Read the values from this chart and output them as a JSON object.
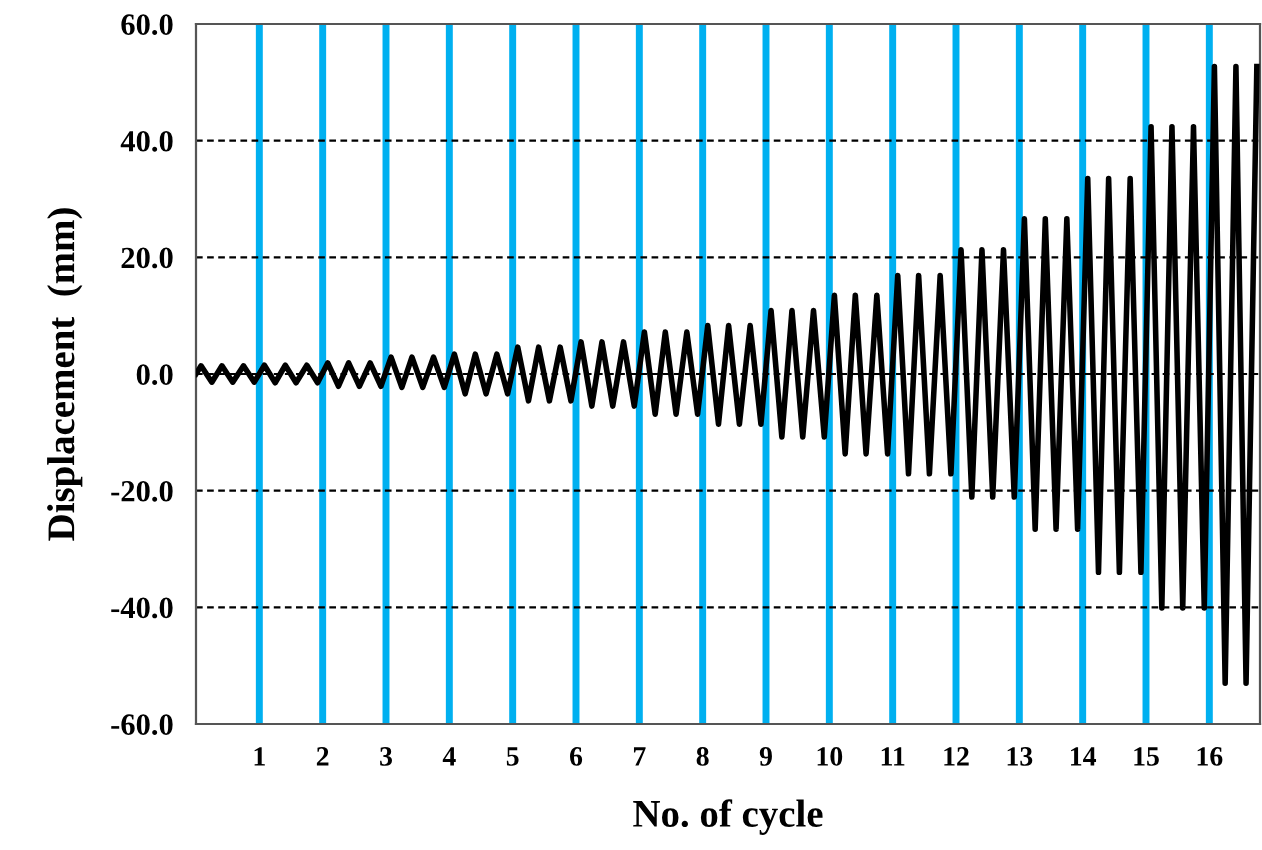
{
  "chart_data": {
    "type": "line",
    "xlabel": "No. of cycle",
    "ylabel": "Displacement  (mm)",
    "xlim": [
      0,
      16.8
    ],
    "xticks": [
      1,
      2,
      3,
      4,
      5,
      6,
      7,
      8,
      9,
      10,
      11,
      12,
      13,
      14,
      15,
      16
    ],
    "ylim": [
      -60,
      60
    ],
    "yticks": [
      {
        "value": -60,
        "label": "-60.0"
      },
      {
        "value": -40,
        "label": "-40.0"
      },
      {
        "value": -20,
        "label": "-20.0"
      },
      {
        "value": 0,
        "label": "0.0"
      },
      {
        "value": 20,
        "label": "20.0"
      },
      {
        "value": 40,
        "label": "40.0"
      },
      {
        "value": 60,
        "label": "60.0"
      }
    ],
    "grid": true,
    "legend": false,
    "marker": "none",
    "line_style": "solid",
    "series": [
      {
        "color": "#000000",
        "x": [
          0,
          0.08,
          0.25,
          0.41,
          0.58,
          0.75,
          0.92,
          1.08,
          1.25,
          1.41,
          1.58,
          1.75,
          1.92,
          2.08,
          2.25,
          2.41,
          2.58,
          2.75,
          2.92,
          3.08,
          3.25,
          3.41,
          3.58,
          3.75,
          3.92,
          4.08,
          4.25,
          4.41,
          4.58,
          4.75,
          4.92,
          5.08,
          5.25,
          5.41,
          5.58,
          5.75,
          5.92,
          6.08,
          6.25,
          6.41,
          6.58,
          6.75,
          6.92,
          7.08,
          7.25,
          7.41,
          7.58,
          7.75,
          7.92,
          8.08,
          8.25,
          8.41,
          8.58,
          8.75,
          8.92,
          9.08,
          9.25,
          9.41,
          9.58,
          9.75,
          9.92,
          10.08,
          10.25,
          10.41,
          10.58,
          10.75,
          10.92,
          11.08,
          11.25,
          11.41,
          11.58,
          11.75,
          11.92,
          12.08,
          12.25,
          12.41,
          12.58,
          12.75,
          12.92,
          13.08,
          13.25,
          13.41,
          13.58,
          13.75,
          13.92,
          14.08,
          14.25,
          14.41,
          14.58,
          14.75,
          14.92,
          15.08,
          15.25,
          15.41,
          15.58,
          15.75,
          15.92,
          16.08,
          16.25,
          16.42,
          16.58,
          16.75
        ],
        "values": [
          0,
          1.4,
          -1.4,
          1.4,
          -1.4,
          1.4,
          -1.4,
          1.5,
          -1.5,
          1.5,
          -1.5,
          1.5,
          -1.5,
          1.9,
          -2.1,
          1.9,
          -2.1,
          1.9,
          -2.1,
          2.9,
          -2.3,
          2.9,
          -2.3,
          2.9,
          -2.3,
          3.4,
          -3.4,
          3.4,
          -3.4,
          3.4,
          -3.4,
          4.6,
          -4.6,
          4.6,
          -4.6,
          4.6,
          -4.6,
          5.5,
          -5.5,
          5.5,
          -5.5,
          5.5,
          -5.5,
          7.2,
          -6.9,
          7.2,
          -6.9,
          7.2,
          -6.9,
          8.3,
          -8.6,
          8.3,
          -8.6,
          8.3,
          -8.6,
          10.9,
          -10.8,
          10.9,
          -10.8,
          10.9,
          -10.8,
          13.5,
          -13.7,
          13.5,
          -13.7,
          13.5,
          -13.7,
          16.9,
          -17.1,
          16.9,
          -17.1,
          16.9,
          -17.1,
          21.3,
          -21.1,
          21.3,
          -21.1,
          21.3,
          -21.1,
          26.6,
          -26.6,
          26.6,
          -26.6,
          26.6,
          -26.6,
          33.5,
          -34.0,
          33.5,
          -34.0,
          33.5,
          -34.0,
          42.4,
          -40.1,
          42.4,
          -40.1,
          42.4,
          -40.1,
          52.7,
          -53.0,
          52.7,
          -53.0,
          52.7
        ]
      }
    ]
  }
}
